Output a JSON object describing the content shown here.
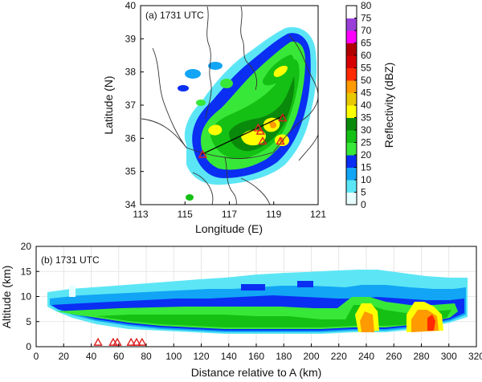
{
  "chart_data": [
    {
      "type": "heatmap",
      "panel_label": "(a) 1731 UTC",
      "xlabel": "Longitude (E)",
      "ylabel": "Latitude (N)",
      "xlim": [
        113,
        121
      ],
      "ylim": [
        34,
        40
      ],
      "xticks": [
        "113",
        "115",
        "117",
        "119",
        "121"
      ],
      "yticks": [
        "34",
        "35",
        "36",
        "37",
        "38",
        "39",
        "40"
      ],
      "cross_section_line": {
        "start": [
          115.7,
          35.5
        ],
        "end": [
          119.5,
          36.7
        ]
      },
      "lightning_markers": [
        {
          "lon": 115.8,
          "lat": 35.5
        },
        {
          "lon": 118.3,
          "lat": 36.3
        },
        {
          "lon": 118.4,
          "lat": 36.2
        },
        {
          "lon": 118.5,
          "lat": 35.9
        },
        {
          "lon": 119.3,
          "lat": 35.9
        },
        {
          "lon": 119.4,
          "lat": 36.6
        }
      ],
      "grid": false
    },
    {
      "type": "heatmap",
      "panel_label": "(b) 1731 UTC",
      "xlabel": "Distance relative to A (km)",
      "ylabel": "Altitude (km)",
      "xlim": [
        0,
        320
      ],
      "ylim": [
        0,
        20
      ],
      "xticks": [
        "0",
        "20",
        "40",
        "60",
        "80",
        "100",
        "120",
        "140",
        "160",
        "180",
        "200",
        "220",
        "240",
        "260",
        "280",
        "300",
        "320"
      ],
      "yticks": [
        "0",
        "5",
        "10",
        "15",
        "20"
      ],
      "lightning_markers_km": [
        45,
        56,
        59,
        69,
        73,
        77
      ],
      "grid": true
    }
  ],
  "colorbar": {
    "label": "Reflectivity (dBZ)",
    "levels": [
      "0",
      "5",
      "10",
      "15",
      "20",
      "25",
      "30",
      "35",
      "40",
      "45",
      "50",
      "55",
      "60",
      "65",
      "70",
      "75",
      "80"
    ],
    "colors": [
      "#e8ffff",
      "#5ce6f5",
      "#12a5f5",
      "#0a2ef2",
      "#38e838",
      "#14c014",
      "#0a8a0a",
      "#ffff00",
      "#e8c800",
      "#ff9a00",
      "#ff2a00",
      "#d60000",
      "#b00000",
      "#ff00ff",
      "#9a40d8",
      "#ffffff"
    ]
  },
  "colors": {
    "marker": "#e02020",
    "boundary": "#333333"
  }
}
